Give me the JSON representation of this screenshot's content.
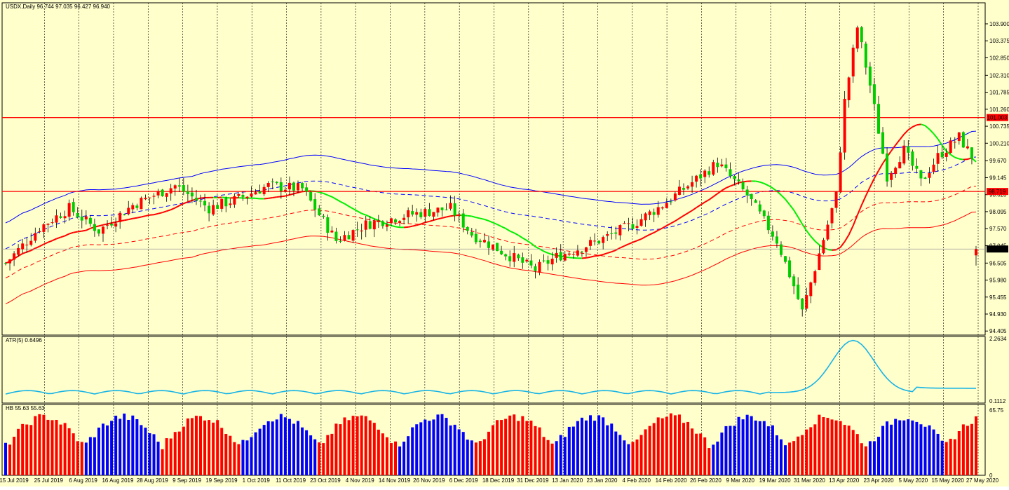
{
  "chart_data": [
    {
      "type": "candlestick",
      "title": "USDX,Daily  96.744 97.035 96.427 96.940",
      "symbol": "USDX,Daily",
      "ohlc_last": {
        "open": 96.744,
        "high": 97.035,
        "low": 96.427,
        "close": 96.94
      },
      "y_ticks": [
        "103.900",
        "103.375",
        "102.850",
        "102.310",
        "101.785",
        "101.260",
        "100.735",
        "100.210",
        "99.670",
        "99.145",
        "98.620",
        "98.095",
        "97.570",
        "97.045",
        "96.505",
        "95.980",
        "95.455",
        "94.930",
        "94.405"
      ],
      "ylim": [
        94.28,
        104.55
      ],
      "levels": [
        {
          "label": "101.003",
          "value": 101.003,
          "color": "#ff0000"
        },
        {
          "label": "98.719",
          "value": 98.719,
          "color": "#ff0000"
        }
      ],
      "current_price": {
        "label": "96.940",
        "value": 96.94
      },
      "series_desc": [
        "candles",
        "envelope/bands"
      ],
      "colors": {
        "up": "#ff0000",
        "down": "#00cc00",
        "band_blue": "#0000ff",
        "band_red": "#ff0000",
        "mid_green": "#00ee00"
      }
    },
    {
      "type": "line",
      "title": "ATR(5) 0.6496",
      "y_ticks": [
        "2.2634",
        "0.1112"
      ],
      "ylim": [
        0.1112,
        2.2634
      ],
      "color": "#18b4e6"
    },
    {
      "type": "bar",
      "title": "HB 55.63 55.63",
      "y_ticks": [
        "65.75",
        "0"
      ],
      "ylim": [
        0,
        65.75
      ],
      "colors": {
        "up": "#ff0000",
        "down": "#0000ff"
      }
    }
  ],
  "x_axis": {
    "labels": [
      "15 Jul 2019",
      "25 Jul 2019",
      "6 Aug 2019",
      "16 Aug 2019",
      "28 Aug 2019",
      "9 Sep 2019",
      "19 Sep 2019",
      "1 Oct 2019",
      "11 Oct 2019",
      "23 Oct 2019",
      "4 Nov 2019",
      "14 Nov 2019",
      "26 Nov 2019",
      "6 Dec 2019",
      "18 Dec 2019",
      "31 Dec 2019",
      "13 Jan 2020",
      "23 Jan 2020",
      "4 Feb 2020",
      "14 Feb 2020",
      "26 Feb 2020",
      "9 Mar 2020",
      "19 Mar 2020",
      "31 Mar 2020",
      "13 Apr 2020",
      "23 Apr 2020",
      "5 May 2020",
      "15 May 2020",
      "27 May 2020"
    ]
  }
}
